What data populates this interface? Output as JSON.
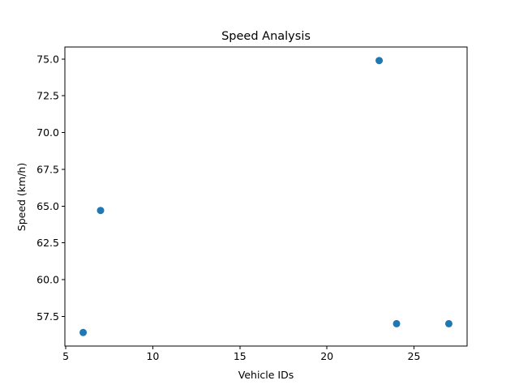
{
  "chart_data": {
    "type": "scatter",
    "title": "Speed Analysis",
    "xlabel": "Vehicle IDs",
    "ylabel": "Speed (km/h)",
    "xlim": [
      4.95,
      28.05
    ],
    "ylim": [
      55.48,
      75.82
    ],
    "x_ticks": [
      5,
      10,
      15,
      20,
      25
    ],
    "x_tick_labels": [
      "5",
      "10",
      "15",
      "20",
      "25"
    ],
    "y_ticks": [
      57.5,
      60.0,
      62.5,
      65.0,
      67.5,
      70.0,
      72.5,
      75.0
    ],
    "y_tick_labels": [
      "57.5",
      "60.0",
      "62.5",
      "65.0",
      "67.5",
      "70.0",
      "72.5",
      "75.0"
    ],
    "grid": false,
    "series": [
      {
        "color": "#1f77b4",
        "points": [
          {
            "x": 6,
            "y": 56.4
          },
          {
            "x": 7,
            "y": 64.7
          },
          {
            "x": 23,
            "y": 74.9
          },
          {
            "x": 24,
            "y": 57.0
          },
          {
            "x": 27,
            "y": 57.0
          }
        ]
      }
    ]
  }
}
